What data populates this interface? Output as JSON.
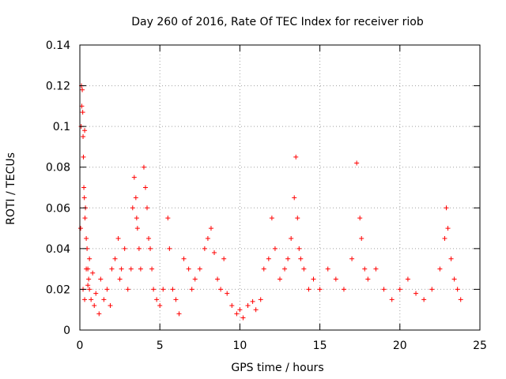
{
  "chart_data": {
    "type": "scatter",
    "title": "Day 260 of 2016, Rate Of TEC Index for receiver riob",
    "xlabel": "GPS time / hours",
    "ylabel": "ROTI / TECUs",
    "xlim": [
      0,
      25
    ],
    "ylim": [
      0,
      0.14
    ],
    "x_ticks": [
      0,
      5,
      10,
      15,
      20,
      25
    ],
    "x_tick_labels": [
      "0",
      "5",
      "10",
      "15",
      "20",
      "25"
    ],
    "y_ticks": [
      0,
      0.02,
      0.04,
      0.06,
      0.08,
      0.1,
      0.12,
      0.14
    ],
    "y_tick_labels": [
      "0",
      "0.02",
      "0.04",
      "0.06",
      "0.08",
      "0.1",
      "0.12",
      "0.14"
    ],
    "grid": true,
    "marker": "+",
    "colors": {
      "series": "#ff0000",
      "grid": "#a0a0a0",
      "axis": "#000000"
    },
    "series": [
      {
        "name": "ROTI",
        "points": [
          [
            0.05,
            0.05
          ],
          [
            0.08,
            0.1
          ],
          [
            0.1,
            0.12
          ],
          [
            0.12,
            0.11
          ],
          [
            0.15,
            0.118
          ],
          [
            0.18,
            0.107
          ],
          [
            0.2,
            0.095
          ],
          [
            0.22,
            0.085
          ],
          [
            0.25,
            0.07
          ],
          [
            0.28,
            0.065
          ],
          [
            0.3,
            0.098
          ],
          [
            0.32,
            0.055
          ],
          [
            0.35,
            0.06
          ],
          [
            0.4,
            0.045
          ],
          [
            0.45,
            0.04
          ],
          [
            0.5,
            0.03
          ],
          [
            0.55,
            0.025
          ],
          [
            0.6,
            0.02
          ],
          [
            0.7,
            0.015
          ],
          [
            0.2,
            0.02
          ],
          [
            0.3,
            0.015
          ],
          [
            0.4,
            0.03
          ],
          [
            0.5,
            0.022
          ],
          [
            0.6,
            0.035
          ],
          [
            0.8,
            0.028
          ],
          [
            0.9,
            0.012
          ],
          [
            1.0,
            0.018
          ],
          [
            1.2,
            0.008
          ],
          [
            1.3,
            0.025
          ],
          [
            1.5,
            0.015
          ],
          [
            1.7,
            0.02
          ],
          [
            1.9,
            0.012
          ],
          [
            2.0,
            0.03
          ],
          [
            2.2,
            0.035
          ],
          [
            2.4,
            0.045
          ],
          [
            2.5,
            0.025
          ],
          [
            2.6,
            0.03
          ],
          [
            2.8,
            0.04
          ],
          [
            3.0,
            0.02
          ],
          [
            3.2,
            0.03
          ],
          [
            3.3,
            0.06
          ],
          [
            3.4,
            0.075
          ],
          [
            3.5,
            0.065
          ],
          [
            3.55,
            0.055
          ],
          [
            3.6,
            0.05
          ],
          [
            3.7,
            0.04
          ],
          [
            3.8,
            0.03
          ],
          [
            4.0,
            0.08
          ],
          [
            4.1,
            0.07
          ],
          [
            4.2,
            0.06
          ],
          [
            4.3,
            0.045
          ],
          [
            4.4,
            0.04
          ],
          [
            4.5,
            0.03
          ],
          [
            4.6,
            0.02
          ],
          [
            4.8,
            0.015
          ],
          [
            5.0,
            0.012
          ],
          [
            5.2,
            0.02
          ],
          [
            5.5,
            0.055
          ],
          [
            5.6,
            0.04
          ],
          [
            5.8,
            0.02
          ],
          [
            6.0,
            0.015
          ],
          [
            6.2,
            0.008
          ],
          [
            6.5,
            0.035
          ],
          [
            6.8,
            0.03
          ],
          [
            7.0,
            0.02
          ],
          [
            7.2,
            0.025
          ],
          [
            7.5,
            0.03
          ],
          [
            7.8,
            0.04
          ],
          [
            8.0,
            0.045
          ],
          [
            8.2,
            0.05
          ],
          [
            8.4,
            0.038
          ],
          [
            8.6,
            0.025
          ],
          [
            8.8,
            0.02
          ],
          [
            9.0,
            0.035
          ],
          [
            9.2,
            0.018
          ],
          [
            9.5,
            0.012
          ],
          [
            9.8,
            0.008
          ],
          [
            10.0,
            0.01
          ],
          [
            10.2,
            0.006
          ],
          [
            10.5,
            0.012
          ],
          [
            10.8,
            0.014
          ],
          [
            11.0,
            0.01
          ],
          [
            11.3,
            0.015
          ],
          [
            11.5,
            0.03
          ],
          [
            11.8,
            0.035
          ],
          [
            12.0,
            0.055
          ],
          [
            12.2,
            0.04
          ],
          [
            12.5,
            0.025
          ],
          [
            12.8,
            0.03
          ],
          [
            13.0,
            0.035
          ],
          [
            13.2,
            0.045
          ],
          [
            13.4,
            0.065
          ],
          [
            13.5,
            0.085
          ],
          [
            13.6,
            0.055
          ],
          [
            13.7,
            0.04
          ],
          [
            13.8,
            0.035
          ],
          [
            14.0,
            0.03
          ],
          [
            14.3,
            0.02
          ],
          [
            14.6,
            0.025
          ],
          [
            15.0,
            0.02
          ],
          [
            15.5,
            0.03
          ],
          [
            16.0,
            0.025
          ],
          [
            16.5,
            0.02
          ],
          [
            17.0,
            0.035
          ],
          [
            17.3,
            0.082
          ],
          [
            17.5,
            0.055
          ],
          [
            17.6,
            0.045
          ],
          [
            17.8,
            0.03
          ],
          [
            18.0,
            0.025
          ],
          [
            18.5,
            0.03
          ],
          [
            19.0,
            0.02
          ],
          [
            19.5,
            0.015
          ],
          [
            20.0,
            0.02
          ],
          [
            20.5,
            0.025
          ],
          [
            21.0,
            0.018
          ],
          [
            21.5,
            0.015
          ],
          [
            22.0,
            0.02
          ],
          [
            22.5,
            0.03
          ],
          [
            22.8,
            0.045
          ],
          [
            22.9,
            0.06
          ],
          [
            23.0,
            0.05
          ],
          [
            23.2,
            0.035
          ],
          [
            23.4,
            0.025
          ],
          [
            23.6,
            0.02
          ],
          [
            23.8,
            0.015
          ]
        ]
      }
    ]
  }
}
